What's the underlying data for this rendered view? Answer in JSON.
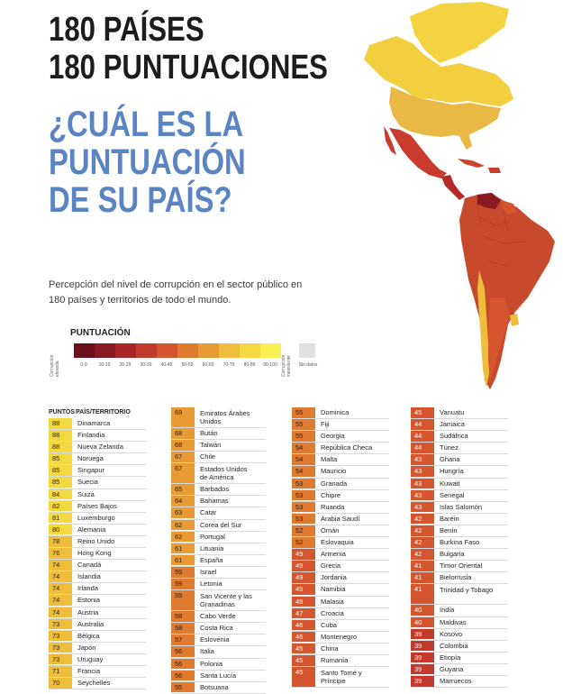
{
  "title_line1": "180 PAÍSES",
  "title_line2": "180 PUNTUACIONES",
  "question_line1": "¿CUÁL ES LA",
  "question_line2": "PUNTUACIÓN",
  "question_line3": "DE SU PAÍS?",
  "intro": "Percepción del nivel de corrupción en el sector público en 180 países y territorios de todo el mundo.",
  "legend": {
    "title": "PUNTUACIÓN",
    "left_label": "Corrupción elevada",
    "right_label": "Corrupción inexistente",
    "no_data": "Sin datos",
    "ranges": [
      {
        "label": "0-9",
        "color": "#6b0f1a"
      },
      {
        "label": "10-19",
        "color": "#8a1a22"
      },
      {
        "label": "20-29",
        "color": "#a8262a"
      },
      {
        "label": "30-39",
        "color": "#c23a2c"
      },
      {
        "label": "40-49",
        "color": "#d4552e"
      },
      {
        "label": "50-59",
        "color": "#df7a2f"
      },
      {
        "label": "60-69",
        "color": "#e89a34"
      },
      {
        "label": "70-79",
        "color": "#efbd3c"
      },
      {
        "label": "80-89",
        "color": "#f4d83f"
      },
      {
        "label": "90-100",
        "color": "#f8ef52"
      }
    ]
  },
  "table_headers": {
    "score": "PUNTOS",
    "country": "PAÍS/TERRITORIO"
  },
  "columns": [
    [
      {
        "score": "88",
        "name": "Dinamarca"
      },
      {
        "score": "88",
        "name": "Finlandia"
      },
      {
        "score": "88",
        "name": "Nueva Zelanda"
      },
      {
        "score": "85",
        "name": "Noruega"
      },
      {
        "score": "85",
        "name": "Singapur"
      },
      {
        "score": "85",
        "name": "Suecia"
      },
      {
        "score": "84",
        "name": "Suiza"
      },
      {
        "score": "82",
        "name": "Países Bajos"
      },
      {
        "score": "81",
        "name": "Luxemburgo"
      },
      {
        "score": "80",
        "name": "Alemania"
      },
      {
        "score": "78",
        "name": "Reino Unido"
      },
      {
        "score": "76",
        "name": "Hong Kong"
      },
      {
        "score": "74",
        "name": "Canadá"
      },
      {
        "score": "74",
        "name": "Islandia"
      },
      {
        "score": "74",
        "name": "Irlanda"
      },
      {
        "score": "74",
        "name": "Estonia"
      },
      {
        "score": "74",
        "name": "Austria"
      },
      {
        "score": "73",
        "name": "Australia"
      },
      {
        "score": "73",
        "name": "Bélgica"
      },
      {
        "score": "73",
        "name": "Japón"
      },
      {
        "score": "73",
        "name": "Uruguay"
      },
      {
        "score": "71",
        "name": "Francia"
      },
      {
        "score": "70",
        "name": "Seychelles"
      }
    ],
    [
      {
        "score": "69",
        "name": "Emiratos Árabes Unidos",
        "tall": true
      },
      {
        "score": "68",
        "name": "Bután"
      },
      {
        "score": "68",
        "name": "Taiwán"
      },
      {
        "score": "67",
        "name": "Chile"
      },
      {
        "score": "67",
        "name": "Estados Unidos de América",
        "tall": true
      },
      {
        "score": "65",
        "name": "Barbados"
      },
      {
        "score": "64",
        "name": "Bahamas"
      },
      {
        "score": "63",
        "name": "Catar"
      },
      {
        "score": "62",
        "name": "Corea del Sur"
      },
      {
        "score": "62",
        "name": "Portugal"
      },
      {
        "score": "61",
        "name": "Lituania"
      },
      {
        "score": "61",
        "name": "España"
      },
      {
        "score": "59",
        "name": "Israel"
      },
      {
        "score": "59",
        "name": "Letonia"
      },
      {
        "score": "59",
        "name": "San Vicente y las Granadinas",
        "tall": true
      },
      {
        "score": "58",
        "name": "Cabo Verde"
      },
      {
        "score": "58",
        "name": "Costa Rica"
      },
      {
        "score": "57",
        "name": "Eslovenia"
      },
      {
        "score": "56",
        "name": "Italia"
      },
      {
        "score": "56",
        "name": "Polonia"
      },
      {
        "score": "56",
        "name": "Santa Lucía"
      },
      {
        "score": "55",
        "name": "Botsuana"
      }
    ],
    [
      {
        "score": "55",
        "name": "Dominica"
      },
      {
        "score": "55",
        "name": "Fiji"
      },
      {
        "score": "55",
        "name": "Georgia"
      },
      {
        "score": "54",
        "name": "República Checa"
      },
      {
        "score": "54",
        "name": "Malta"
      },
      {
        "score": "54",
        "name": "Mauricio"
      },
      {
        "score": "53",
        "name": "Granada"
      },
      {
        "score": "53",
        "name": "Chipre"
      },
      {
        "score": "53",
        "name": "Ruanda"
      },
      {
        "score": "53",
        "name": "Arabia Saudí"
      },
      {
        "score": "52",
        "name": "Omán"
      },
      {
        "score": "52",
        "name": "Eslovaquia"
      },
      {
        "score": "49",
        "name": "Armenia"
      },
      {
        "score": "49",
        "name": "Grecia"
      },
      {
        "score": "49",
        "name": "Jordania"
      },
      {
        "score": "49",
        "name": "Namibia"
      },
      {
        "score": "48",
        "name": "Malasia"
      },
      {
        "score": "47",
        "name": "Croacia"
      },
      {
        "score": "46",
        "name": "Cuba"
      },
      {
        "score": "46",
        "name": "Montenegro"
      },
      {
        "score": "45",
        "name": "China"
      },
      {
        "score": "45",
        "name": "Rumanía"
      },
      {
        "score": "45",
        "name": "Santo Tomé y Príncipe",
        "tall": true
      }
    ],
    [
      {
        "score": "45",
        "name": "Vanuatu"
      },
      {
        "score": "44",
        "name": "Jamaica"
      },
      {
        "score": "44",
        "name": "Sudáfrica"
      },
      {
        "score": "44",
        "name": "Túnez"
      },
      {
        "score": "43",
        "name": "Ghana"
      },
      {
        "score": "43",
        "name": "Hungría"
      },
      {
        "score": "43",
        "name": "Kuwait"
      },
      {
        "score": "43",
        "name": "Senegal"
      },
      {
        "score": "43",
        "name": "Islas Salomón"
      },
      {
        "score": "42",
        "name": "Baréin"
      },
      {
        "score": "42",
        "name": "Benín"
      },
      {
        "score": "42",
        "name": "Burkina Faso"
      },
      {
        "score": "42",
        "name": "Bulgaria"
      },
      {
        "score": "41",
        "name": "Timor Oriental"
      },
      {
        "score": "41",
        "name": "Bielorrusia"
      },
      {
        "score": "41",
        "name": "Trinidad y Tobago",
        "tall": true
      },
      {
        "score": "40",
        "name": "India"
      },
      {
        "score": "40",
        "name": "Maldivas"
      },
      {
        "score": "39",
        "name": "Kosovo"
      },
      {
        "score": "39",
        "name": "Colombia"
      },
      {
        "score": "39",
        "name": "Etiopía"
      },
      {
        "score": "39",
        "name": "Guyana"
      },
      {
        "score": "39",
        "name": "Marruecos"
      }
    ]
  ]
}
